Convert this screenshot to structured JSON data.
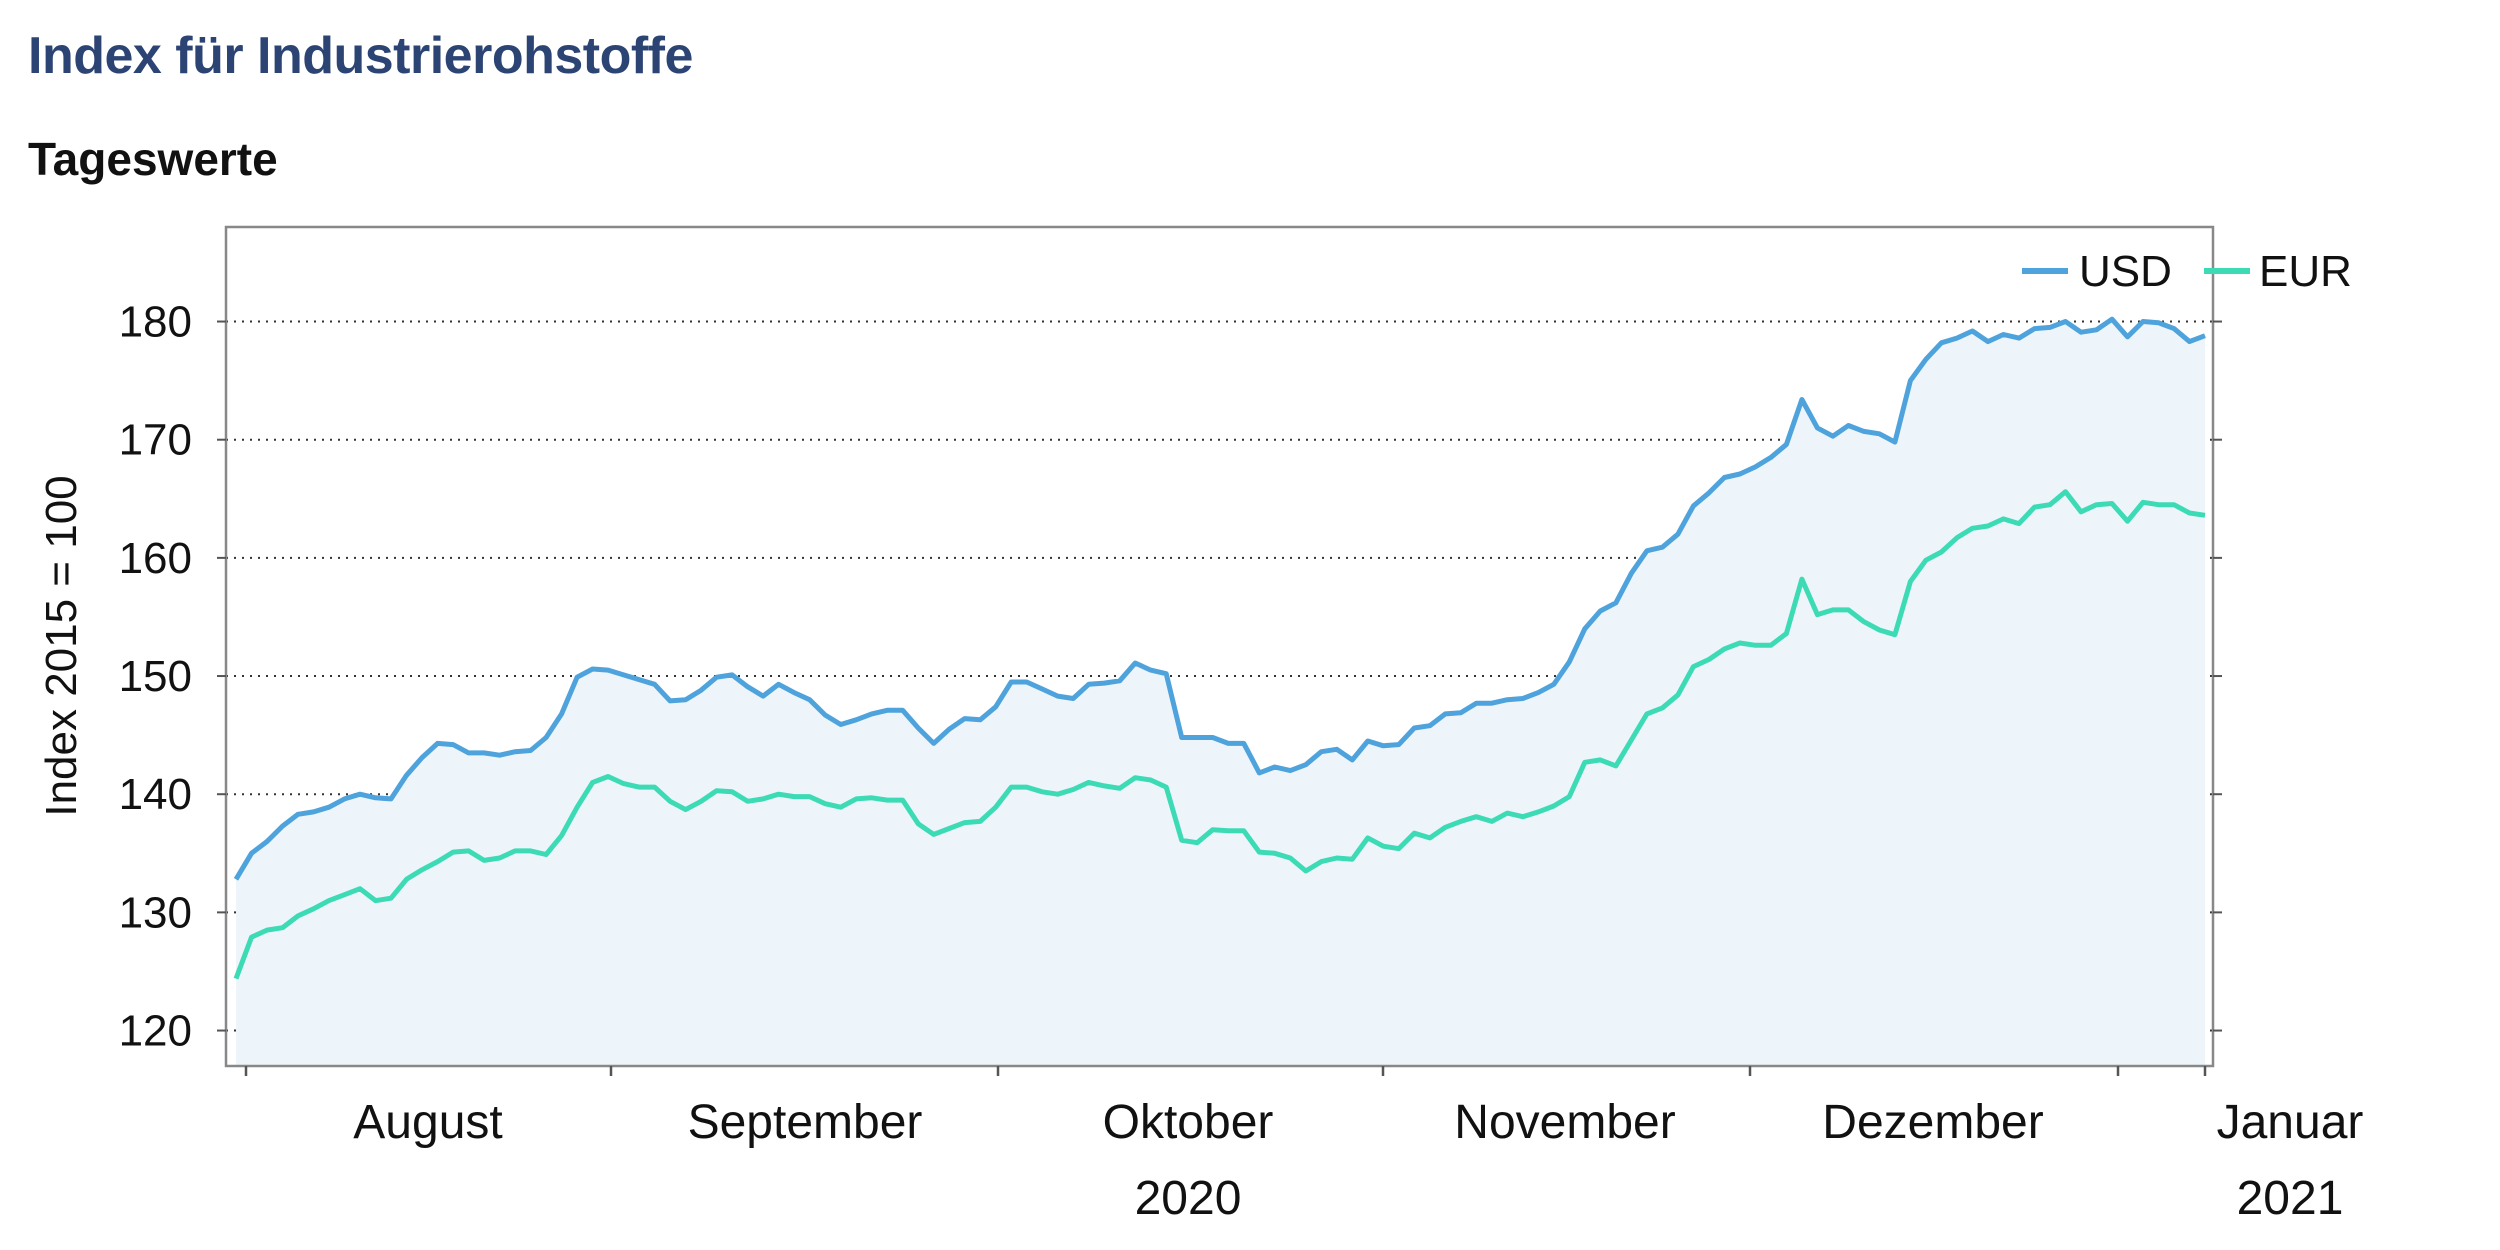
{
  "header": {
    "title": "Index für Industrierohstoffe",
    "subtitle": "Tageswerte"
  },
  "chart_data": {
    "type": "area",
    "title": "Index für Industrierohstoffe",
    "subtitle": "Tageswerte",
    "ylabel": "Index 2015 = 100",
    "xlabel": "",
    "ylim": [
      117,
      188
    ],
    "yticks": [
      120,
      130,
      140,
      150,
      160,
      170,
      180
    ],
    "grid": "horizontal dotted",
    "legend": "top-right",
    "months": [
      {
        "label": "August",
        "year": ""
      },
      {
        "label": "September",
        "year": ""
      },
      {
        "label": "Oktober",
        "year": "2020"
      },
      {
        "label": "November",
        "year": ""
      },
      {
        "label": "Dezember",
        "year": ""
      },
      {
        "label": "Januar",
        "year": "2021"
      }
    ],
    "colors": {
      "USD": "#4ea3dd",
      "EUR": "#3ddbb5",
      "fill": "#eef5fa"
    },
    "series": [
      {
        "name": "USD",
        "values": [
          132.8,
          135.0,
          136.0,
          137.3,
          138.3,
          138.5,
          138.9,
          139.6,
          140.0,
          139.7,
          139.6,
          141.6,
          143.1,
          144.3,
          144.2,
          143.5,
          143.5,
          143.3,
          143.6,
          143.7,
          144.8,
          146.8,
          149.9,
          150.6,
          150.5,
          150.1,
          149.7,
          149.3,
          147.9,
          148.0,
          148.8,
          149.9,
          150.1,
          149.1,
          148.3,
          149.3,
          148.6,
          148.0,
          146.7,
          145.9,
          146.3,
          146.8,
          147.1,
          147.1,
          145.6,
          144.3,
          145.5,
          146.4,
          146.3,
          147.4,
          149.5,
          149.5,
          148.9,
          148.3,
          148.1,
          149.3,
          149.4,
          149.6,
          151.1,
          150.5,
          150.2,
          144.8,
          144.8,
          144.8,
          144.3,
          144.3,
          141.8,
          142.3,
          142.0,
          142.5,
          143.6,
          143.8,
          142.9,
          144.5,
          144.1,
          144.2,
          145.6,
          145.8,
          146.8,
          146.9,
          147.7,
          147.7,
          148.0,
          148.1,
          148.6,
          149.3,
          151.2,
          154.0,
          155.5,
          156.2,
          158.7,
          160.6,
          160.9,
          162.0,
          164.4,
          165.5,
          166.8,
          167.1,
          167.7,
          168.5,
          169.6,
          173.4,
          171.0,
          170.3,
          171.2,
          170.7,
          170.5,
          169.8,
          175.0,
          176.8,
          178.2,
          178.6,
          179.2,
          178.3,
          178.9,
          178.6,
          179.4,
          179.5,
          180.0,
          179.1,
          179.3,
          180.2,
          178.7,
          180.0,
          179.9,
          179.4,
          178.3,
          178.8
        ]
      },
      {
        "name": "EUR",
        "values": [
          124.4,
          127.9,
          128.5,
          128.7,
          129.7,
          130.3,
          131.0,
          131.5,
          132.0,
          131.0,
          131.2,
          132.8,
          133.6,
          134.3,
          135.1,
          135.2,
          134.4,
          134.6,
          135.2,
          135.2,
          134.9,
          136.5,
          138.9,
          141.0,
          141.5,
          140.9,
          140.6,
          140.6,
          139.4,
          138.7,
          139.4,
          140.3,
          140.2,
          139.4,
          139.6,
          140.0,
          139.8,
          139.8,
          139.2,
          138.9,
          139.6,
          139.7,
          139.5,
          139.5,
          137.5,
          136.6,
          137.1,
          137.6,
          137.7,
          138.9,
          140.6,
          140.6,
          140.2,
          140.0,
          140.4,
          141.0,
          140.7,
          140.5,
          141.4,
          141.2,
          140.6,
          136.1,
          135.9,
          137.0,
          136.9,
          136.9,
          135.1,
          135.0,
          134.6,
          133.5,
          134.3,
          134.6,
          134.5,
          136.3,
          135.6,
          135.4,
          136.7,
          136.3,
          137.2,
          137.7,
          138.1,
          137.7,
          138.4,
          138.1,
          138.5,
          139.0,
          139.8,
          142.7,
          142.9,
          142.4,
          144.6,
          146.8,
          147.3,
          148.4,
          150.8,
          151.4,
          152.3,
          152.8,
          152.6,
          152.6,
          153.6,
          158.2,
          155.2,
          155.6,
          155.6,
          154.6,
          153.9,
          153.5,
          158.0,
          159.8,
          160.5,
          161.7,
          162.5,
          162.7,
          163.3,
          162.9,
          164.3,
          164.5,
          165.6,
          163.9,
          164.5,
          164.6,
          163.1,
          164.7,
          164.5,
          164.5,
          163.8,
          163.6
        ]
      }
    ]
  }
}
